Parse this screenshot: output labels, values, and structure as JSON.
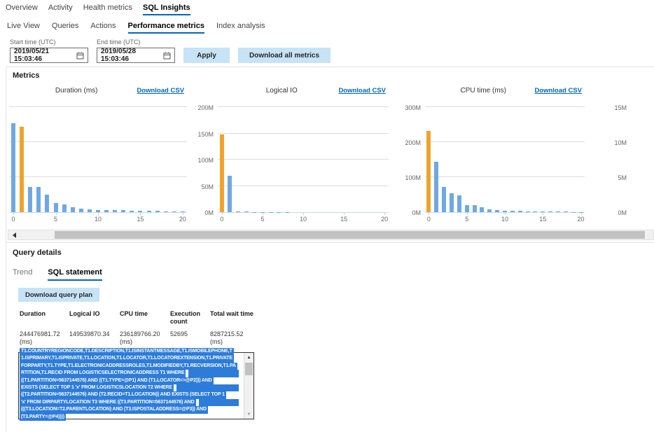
{
  "colors": {
    "accent": "#0067b8",
    "bar_blue": "#6fa8e2",
    "bar_orange": "#efa32d",
    "button_bg": "#c7e3f6",
    "selection_blue": "#2e7cd9"
  },
  "nav_primary": {
    "items": [
      {
        "label": "Overview",
        "active": false
      },
      {
        "label": "Activity",
        "active": false
      },
      {
        "label": "Health metrics",
        "active": false
      },
      {
        "label": "SQL Insights",
        "active": true
      }
    ]
  },
  "nav_secondary": {
    "items": [
      {
        "label": "Live View",
        "active": false
      },
      {
        "label": "Queries",
        "active": false
      },
      {
        "label": "Actions",
        "active": false
      },
      {
        "label": "Performance metrics",
        "active": true
      },
      {
        "label": "Index analysis",
        "active": false
      }
    ]
  },
  "filters": {
    "start": {
      "label": "Start time (UTC)",
      "value": "2019/05/21 15:03:46"
    },
    "end": {
      "label": "End time (UTC)",
      "value": "2019/05/28 15:03:46"
    },
    "apply_label": "Apply",
    "download_all_label": "Download all metrics"
  },
  "metrics": {
    "title": "Metrics",
    "download_csv_label": "Download CSV"
  },
  "chart_data": [
    {
      "type": "bar",
      "title": "Duration (ms)",
      "x": [
        0,
        1,
        2,
        3,
        4,
        5,
        6,
        7,
        8,
        9,
        10,
        11,
        12,
        13,
        14,
        15,
        16,
        17,
        18,
        19,
        20
      ],
      "values": [
        170,
        163,
        48,
        48,
        33,
        17,
        15,
        10,
        7,
        5.5,
        4.5,
        4,
        3.8,
        3.5,
        3.2,
        2.8,
        2.5,
        2.2,
        2,
        1.2,
        1
      ],
      "ylim": [
        0,
        200
      ],
      "x_ticks": [
        0,
        5,
        10,
        15,
        20
      ],
      "y_tick_labels": [],
      "y_axis_note": "y-axis labels scrolled out of view",
      "highlight_index": 1,
      "legend": "none",
      "grid": true
    },
    {
      "type": "bar",
      "title": "Logical IO",
      "x": [
        0,
        1,
        2,
        3,
        4,
        5,
        6,
        7,
        8,
        9,
        10,
        11,
        12,
        13,
        14,
        15,
        16,
        17,
        18,
        19,
        20
      ],
      "values": [
        148,
        70,
        2,
        1.5,
        0.6,
        0.4,
        0.3,
        0.2,
        0.2,
        0.1,
        0.1,
        0.1,
        0,
        0,
        0,
        0,
        0,
        0,
        0,
        0,
        0
      ],
      "ylim": [
        0,
        200
      ],
      "x_ticks": [
        0,
        5,
        10,
        15,
        20
      ],
      "y_tick_labels": [
        "0M",
        "50M",
        "100M",
        "150M",
        "200M"
      ],
      "highlight_index": 0,
      "legend": "none",
      "grid": true
    },
    {
      "type": "bar",
      "title": "CPU time (ms)",
      "x": [
        0,
        1,
        2,
        3,
        4,
        5,
        6,
        7,
        8,
        9,
        10,
        11,
        12,
        13,
        14,
        15,
        16,
        17,
        18,
        19,
        20
      ],
      "values": [
        233,
        144,
        72,
        55,
        49,
        21,
        20,
        14,
        9,
        6,
        4.5,
        4,
        3.5,
        3,
        2.8,
        2.8,
        2.2,
        1.5,
        1.2,
        1,
        0.8
      ],
      "ylim": [
        0,
        300
      ],
      "x_ticks": [
        0,
        5,
        10,
        15,
        20
      ],
      "y_tick_labels": [
        "0M",
        "100M",
        "200M",
        "300M"
      ],
      "highlight_index": 0,
      "legend": "none",
      "grid": true
    },
    {
      "type": "bar",
      "title": "",
      "partial": true,
      "values": [],
      "y_tick_labels": [
        "0M",
        "5M",
        "10M",
        "15M"
      ],
      "note": "fourth chart clipped at right edge; only y-axis labels visible"
    }
  ],
  "query_details": {
    "title": "Query details",
    "tabs": [
      {
        "label": "Trend",
        "active": false
      },
      {
        "label": "SQL statement",
        "active": true
      }
    ],
    "download_plan_label": "Download query plan",
    "stats": {
      "columns": [
        {
          "header": "Duration",
          "value": "244476981.72",
          "unit": "(ms)"
        },
        {
          "header": "Logical IO",
          "value": "149539870.34",
          "unit": ""
        },
        {
          "header": "CPU time",
          "value": "236189766.20",
          "unit": "(ms)"
        },
        {
          "header": "Execution count",
          "value": "52695",
          "unit": ""
        },
        {
          "header": "Total wait time",
          "value": "8287215.52",
          "unit": "(ms)"
        }
      ]
    },
    "sql_lines": [
      {
        "text": "T1.COUNTRYREGIONCODE,T1.DESCRIPTION,T1.ISINSTANTMESSAGE,T1.ISMOBILEPHONE,T",
        "trail": false,
        "clipped": true
      },
      {
        "text": "1.ISPRIMARY,T1.ISPRIVATE,T1.LOCATION,T1.LOCATOR,T1.LOCATOREXTENSION,T1.PRIVATE",
        "trail": false
      },
      {
        "text": "FORPARTY,T1.TYPE,T1.ELECTRONICADDRESSROLES,T1.MODIFIEDBY,T1.RECVERSION,T1.PA",
        "trail": false
      },
      {
        "text": "RTITION,T1.RECID FROM LOGISTICSELECTRONICADDRESS T1 WHERE",
        "trail": true
      },
      {
        "text": "((T1.PARTITION=5637144576) AND ((T1.TYPE=@P1) AND (T1.LOCATOR<>@P2))) AND",
        "trail": false
      },
      {
        "text": "EXISTS (SELECT TOP 1 'x' FROM LOGISTICSLOCATION T2 WHERE",
        "trail": true
      },
      {
        "text": "((T2.PARTITION=5637144576) AND (T2.RECID=T1.LOCATION)) AND EXISTS (SELECT TOP 1",
        "trail": false
      },
      {
        "text": "'x' FROM DIRPARTYLOCATION T3 WHERE ((T3.PARTITION=5637144576) AND",
        "trail": true
      },
      {
        "text": "(((T3.LOCATION=T2.PARENTLOCATION) AND (T3.ISPOSTALADDRESS=@P3)) AND",
        "trail": false
      },
      {
        "text": "(T3.PARTY=@P4))))",
        "trail": false
      }
    ]
  }
}
